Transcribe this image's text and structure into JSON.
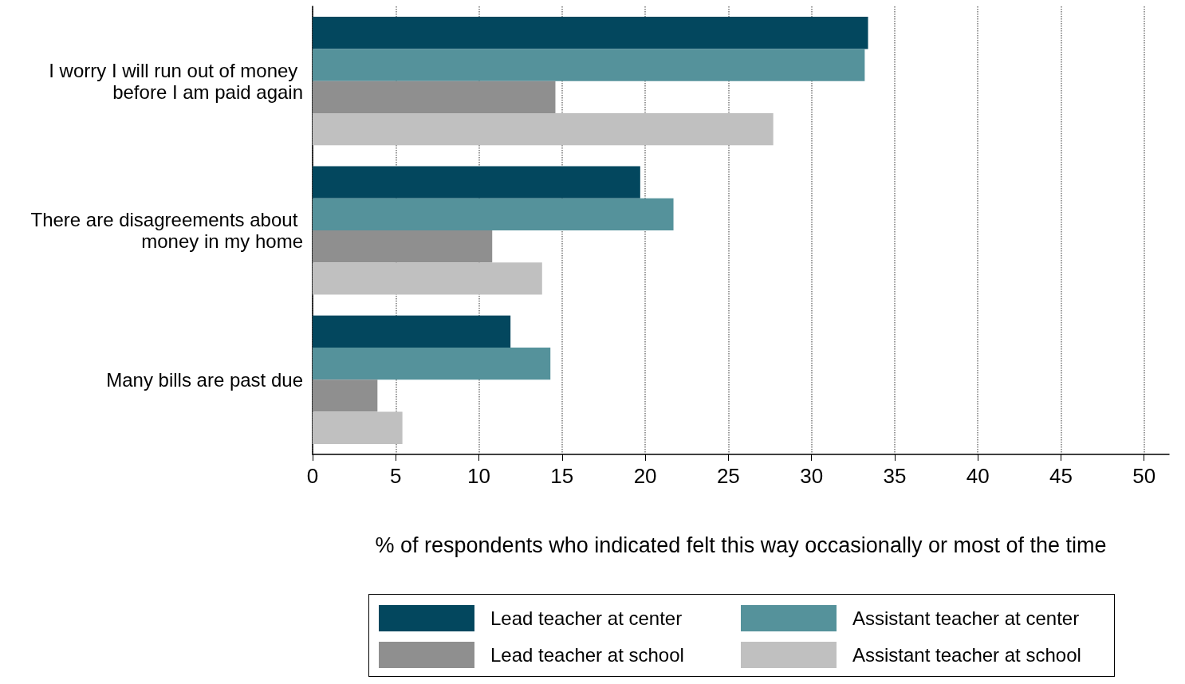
{
  "chart_data": {
    "type": "bar",
    "orientation": "horizontal",
    "xlabel": "% of respondents who indicated felt this way occasionally or most of the time",
    "categories": [
      "I worry I will run out of money before I am paid again",
      "There are disagreements about money in my home",
      "Many bills are past due"
    ],
    "series": [
      {
        "name": "Lead teacher at center",
        "color": "#03475e",
        "values": [
          33.4,
          19.7,
          11.9
        ]
      },
      {
        "name": "Assistant teacher at center",
        "color": "#55929b",
        "values": [
          33.2,
          21.7,
          14.3
        ]
      },
      {
        "name": "Lead teacher at school",
        "color": "#8f8f8f",
        "values": [
          14.6,
          10.8,
          3.9
        ]
      },
      {
        "name": "Assistant teacher at school",
        "color": "#c0c0c0",
        "values": [
          27.7,
          13.8,
          5.4
        ]
      }
    ],
    "xlim": [
      0,
      51.5
    ],
    "xticks": [
      0,
      5,
      10,
      15,
      20,
      25,
      30,
      35,
      40,
      45,
      50
    ],
    "grid": "x",
    "legend": "bottom"
  }
}
